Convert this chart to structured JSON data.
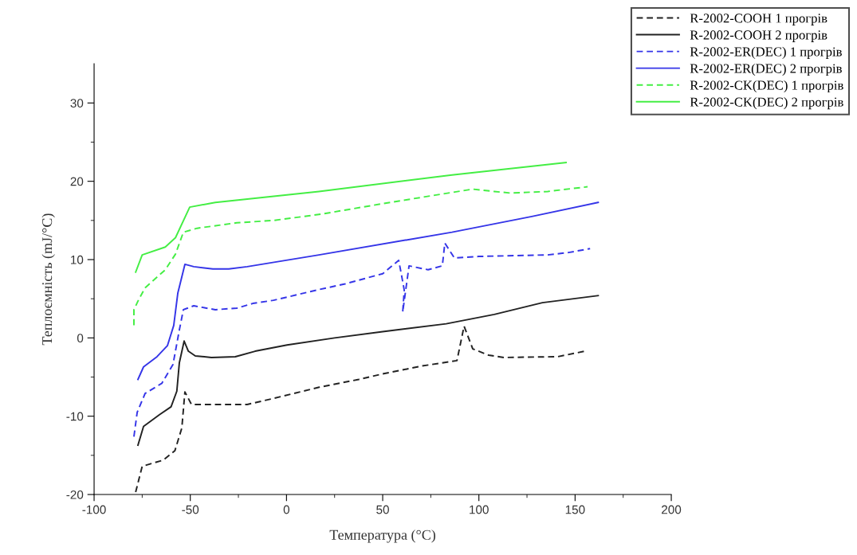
{
  "chart_data": {
    "type": "line",
    "xlabel": "Температура (°C)",
    "ylabel": "Теплоємність (mJ/°C)",
    "xlim": [
      -100,
      200
    ],
    "ylim": [
      -20,
      35
    ],
    "xticks": [
      -100,
      {
        "value": -75,
        "label": null
      },
      -50,
      {
        "value": -25,
        "label": null
      },
      0,
      {
        "value": 25,
        "label": null
      },
      50,
      {
        "value": 75,
        "label": null
      },
      100,
      {
        "value": 125,
        "label": null
      },
      150,
      {
        "value": 175,
        "label": null
      },
      200
    ],
    "yticks": [
      -20,
      {
        "value": -15,
        "label": null
      },
      -10,
      {
        "value": -5,
        "label": null
      },
      0,
      {
        "value": 5,
        "label": null
      },
      10,
      {
        "value": 15,
        "label": null
      },
      20,
      {
        "value": 25,
        "label": null
      },
      30
    ],
    "grid": false,
    "legend": "top right",
    "marker": "none",
    "series": [
      {
        "name": "R-2002-COOH 1 прогрів",
        "color": "#222222",
        "line_style": "dashed",
        "x": [
          -78.4,
          -75,
          -64,
          -58,
          -54.4,
          -52.8,
          -49.4,
          -20.4,
          -8,
          17,
          37.6,
          50,
          70,
          88.6,
          92.3,
          96.8,
          105,
          113,
          141,
          155
        ],
        "values": [
          -19.7,
          -16.4,
          -15.6,
          -14.4,
          -11.5,
          -6.9,
          -8.5,
          -8.5,
          -7.8,
          -6.3,
          -5.3,
          -4.6,
          -3.6,
          -2.9,
          1.5,
          -1.4,
          -2.2,
          -2.5,
          -2.4,
          -1.7
        ]
      },
      {
        "name": "R-2002-COOH 2 прогрів",
        "color": "#222222",
        "line_style": "solid",
        "x": [
          -77.2,
          -74.3,
          -66,
          -60,
          -57,
          -55.7,
          -53.2,
          -51,
          -47.4,
          -39,
          -26.6,
          -16.3,
          0.3,
          25,
          50,
          83,
          108,
          133,
          162
        ],
        "values": [
          -13.7,
          -11.3,
          -9.8,
          -8.8,
          -6.8,
          -3.2,
          -0.4,
          -1.7,
          -2.3,
          -2.5,
          -2.4,
          -1.7,
          -0.9,
          0,
          0.8,
          1.8,
          3,
          4.5,
          5.4
        ]
      },
      {
        "name": "R-2002-ER(DEC) 1 прогрів",
        "color": "#3535e8",
        "line_style": "dashed",
        "x": [
          -79.3,
          -77.6,
          -73.5,
          -64.8,
          -59,
          -55.7,
          -53.6,
          -48.2,
          -37,
          -25.8,
          -17.5,
          -6.8,
          15.6,
          30.5,
          50,
          58.3,
          59.5,
          61.2,
          60.4,
          63.7,
          73.6,
          81,
          82.3,
          87.3,
          99.8,
          135.8,
          146.6,
          157.8
        ],
        "values": [
          -12.6,
          -9.5,
          -7.1,
          -5.8,
          -3.4,
          1,
          3.6,
          4.1,
          3.6,
          3.8,
          4.4,
          4.8,
          6.1,
          6.9,
          8.2,
          9.9,
          8.4,
          6.1,
          3.3,
          9.2,
          8.7,
          9.2,
          12.1,
          10.2,
          10.4,
          10.6,
          10.9,
          11.4
        ]
      },
      {
        "name": "R-2002-ER(DEC) 2 прогрів",
        "color": "#3535e8",
        "line_style": "solid",
        "x": [
          -77.2,
          -74.3,
          -67.3,
          -61.9,
          -58.6,
          -56.5,
          -52.8,
          -48.2,
          -38.3,
          -30,
          -20.4,
          16.9,
          86,
          127.5,
          162
        ],
        "values": [
          -5.3,
          -3.7,
          -2.4,
          -1,
          1.6,
          5.7,
          9.4,
          9.1,
          8.8,
          8.8,
          9.1,
          10.6,
          13.5,
          15.5,
          17.3
        ]
      },
      {
        "name": "R-2002-CK(DEC) 1 прогрів",
        "color": "#44ee44",
        "line_style": "dashed",
        "x": [
          -79.3,
          -79.3,
          -77.2,
          -73.5,
          -63,
          -57.7,
          -53.6,
          -46.5,
          -25.8,
          -6.8,
          18,
          51.3,
          96.8,
          108,
          116.3,
          135.8,
          156.5
        ],
        "values": [
          1.6,
          3.6,
          4.7,
          6.4,
          8.7,
          10.7,
          13.5,
          14,
          14.7,
          15,
          15.8,
          17.2,
          19,
          18.7,
          18.5,
          18.7,
          19.3
        ]
      },
      {
        "name": "R-2002-CK(DEC) 2 прогрів",
        "color": "#44ee44",
        "line_style": "solid",
        "x": [
          -78.4,
          -75,
          -63,
          -57.7,
          -50.3,
          -37,
          16.9,
          86,
          145.3
        ],
        "values": [
          8.4,
          10.6,
          11.6,
          12.8,
          16.7,
          17.3,
          18.7,
          20.8,
          22.4
        ]
      }
    ]
  }
}
